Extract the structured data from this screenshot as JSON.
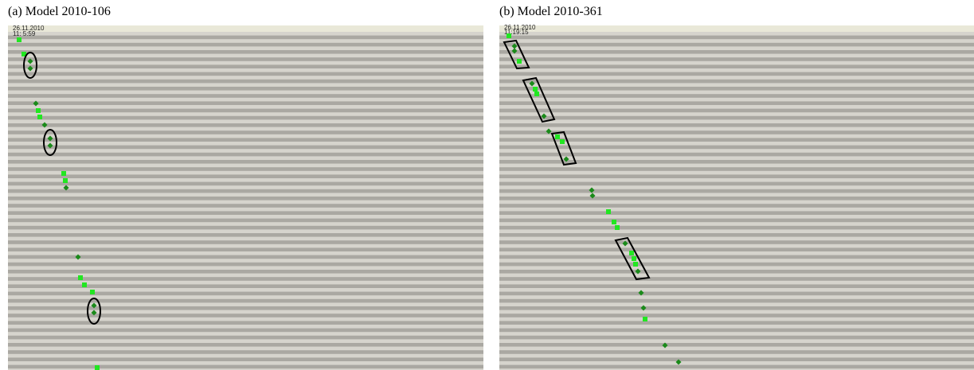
{
  "panels": [
    {
      "title": "(a) Model 2010-106",
      "date": "26.11.2010",
      "time": "11: 5:59"
    },
    {
      "title": "(b) Model 2010-361",
      "date": "26.11.2010",
      "time": "11:19:15"
    }
  ]
}
